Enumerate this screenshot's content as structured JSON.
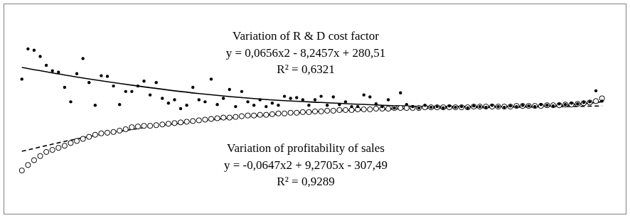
{
  "chart_data": {
    "type": "scatter",
    "xlim": [
      -2,
      100
    ],
    "ylim": [
      0,
      307
    ],
    "xticks": [],
    "yticks": [],
    "tick_labels": false,
    "grid": false,
    "series": [
      {
        "type": "scatter",
        "marker": "filled_circle",
        "color": "#000000",
        "x": [
          1,
          2,
          3,
          4,
          5,
          6,
          7,
          8,
          9,
          10,
          11,
          12,
          13,
          14,
          15,
          16,
          17,
          18,
          19,
          20,
          21,
          22,
          23,
          24,
          25,
          26,
          27,
          28,
          29,
          30,
          31,
          32,
          33,
          34,
          35,
          36,
          37,
          38,
          39,
          40,
          41,
          42,
          43,
          44,
          45,
          46,
          47,
          48,
          49,
          50,
          51,
          52,
          53,
          54,
          55,
          56,
          57,
          58,
          59,
          60,
          61,
          62,
          63,
          64,
          65,
          66,
          67,
          68,
          69,
          70,
          71,
          72,
          73,
          74,
          75,
          76,
          77,
          78,
          79,
          80,
          81,
          82,
          83,
          84,
          85,
          86,
          87,
          88,
          89,
          90,
          91,
          92,
          93,
          94,
          95,
          96
        ],
        "values": [
          197,
          241,
          239,
          230,
          217,
          209,
          207,
          185,
          164,
          205,
          227,
          192,
          159,
          202,
          201,
          187,
          160,
          179,
          179,
          187,
          194,
          174,
          192,
          169,
          162,
          167,
          154,
          159,
          185,
          167,
          164,
          197,
          160,
          169,
          182,
          157,
          179,
          164,
          159,
          167,
          157,
          162,
          159,
          172,
          169,
          170,
          167,
          159,
          167,
          172,
          159,
          171,
          160,
          164,
          157,
          157,
          174,
          171,
          161,
          157,
          167,
          155,
          177,
          160,
          157,
          155,
          159,
          156,
          157,
          155,
          158,
          156,
          157,
          155,
          158,
          157,
          156,
          159,
          157,
          156,
          158,
          157,
          159,
          158,
          157,
          160,
          159,
          158,
          161,
          160,
          162,
          161,
          163,
          164,
          180,
          165
        ]
      },
      {
        "type": "scatter",
        "marker": "open_circle",
        "color": "#000000",
        "x": [
          1,
          2,
          3,
          4,
          5,
          6,
          7,
          8,
          9,
          10,
          11,
          12,
          13,
          14,
          15,
          16,
          17,
          18,
          19,
          20,
          21,
          22,
          23,
          24,
          25,
          26,
          27,
          28,
          29,
          30,
          31,
          32,
          33,
          34,
          35,
          36,
          37,
          38,
          39,
          40,
          41,
          42,
          43,
          44,
          45,
          46,
          47,
          48,
          49,
          50,
          51,
          52,
          53,
          54,
          55,
          56,
          57,
          58,
          59,
          60,
          61,
          62,
          63,
          64,
          65,
          66,
          67,
          68,
          69,
          70,
          71,
          72,
          73,
          74,
          75,
          76,
          77,
          78,
          79,
          80,
          81,
          82,
          83,
          84,
          85,
          86,
          87,
          88,
          89,
          90,
          91,
          92,
          93,
          94,
          95,
          96
        ],
        "values": [
          64,
          72,
          79,
          85,
          91,
          94,
          97,
          100,
          104,
          107,
          110,
          113,
          116,
          118,
          119,
          120,
          122,
          124,
          127,
          128,
          129,
          129,
          130,
          131,
          132,
          133,
          134,
          135,
          136,
          137,
          138,
          139,
          140,
          141,
          141,
          142,
          143,
          144,
          144,
          145,
          145,
          146,
          147,
          147,
          148,
          148,
          149,
          149,
          150,
          150,
          151,
          151,
          152,
          152,
          152,
          153,
          153,
          153,
          154,
          154,
          154,
          155,
          155,
          155,
          155,
          155,
          156,
          156,
          156,
          156,
          156,
          156,
          156,
          156,
          157,
          157,
          157,
          157,
          157,
          157,
          157,
          158,
          158,
          158,
          158,
          158,
          159,
          159,
          159,
          160,
          160,
          161,
          162,
          163,
          165,
          169
        ]
      },
      {
        "type": "line",
        "line_style": "solid",
        "color": "#000000",
        "x": [
          1,
          10,
          20,
          30,
          40,
          50,
          60,
          70,
          80,
          90,
          96
        ],
        "values": [
          214,
          200,
          187,
          176,
          168,
          163,
          159,
          157,
          157,
          159,
          164
        ]
      },
      {
        "type": "line",
        "line_style": "dashed",
        "color": "#000000",
        "x": [
          1,
          10,
          20,
          30,
          40,
          50,
          60,
          70,
          80,
          90,
          96
        ],
        "values": [
          92,
          110,
          125,
          136,
          144,
          150,
          153,
          155,
          156,
          157,
          158
        ]
      }
    ],
    "annotations": [
      {
        "lines": [
          "Variation of R & D cost factor",
          "y = 0,0656x2 - 8,2457x + 280,51",
          "R² = 0,6321"
        ]
      },
      {
        "lines": [
          "Variation of profitability of sales",
          "y = -0,0647x2 + 9,2705x - 307,49",
          "R² = 0,9289"
        ]
      }
    ]
  }
}
